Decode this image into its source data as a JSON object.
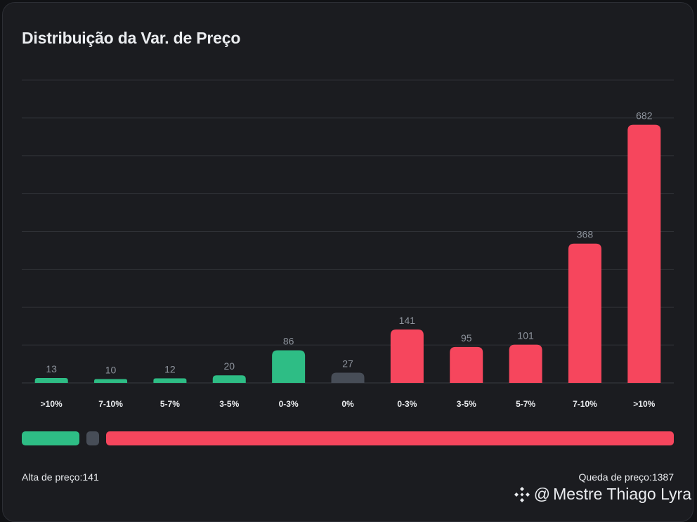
{
  "title": "Distribuição da Var. de Preço",
  "colors": {
    "up": "#2ebd85",
    "neutral": "#474d57",
    "down": "#f6465d"
  },
  "chart_data": {
    "type": "bar",
    "categories": [
      ">10%",
      "7-10%",
      "5-7%",
      "3-5%",
      "0-3%",
      "0%",
      "0-3%",
      "3-5%",
      "5-7%",
      "7-10%",
      ">10%"
    ],
    "values": [
      13,
      10,
      12,
      20,
      86,
      27,
      141,
      95,
      101,
      368,
      682
    ],
    "bar_colors": [
      "up",
      "up",
      "up",
      "up",
      "up",
      "neutral",
      "down",
      "down",
      "down",
      "down",
      "down"
    ],
    "ylim": [
      0,
      800
    ],
    "grid": true
  },
  "ratio": {
    "up": 141,
    "neutral": 27,
    "down": 1387
  },
  "footer": {
    "up_text": "Alta de preço:141",
    "down_text": "Queda de preço:1387"
  },
  "watermark": {
    "at": "@",
    "name": "Mestre Thiago Lyra",
    "icon": "binance-logo-icon"
  }
}
